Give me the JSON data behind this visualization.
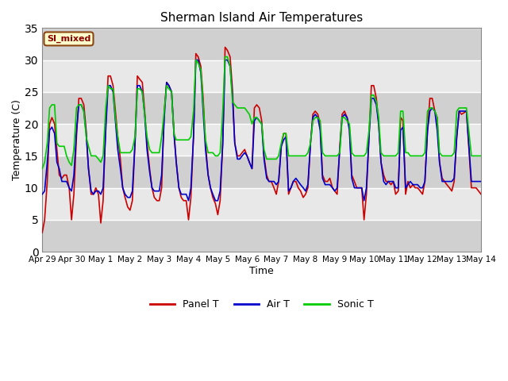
{
  "title": "Sherman Island Air Temperatures",
  "xlabel": "Time",
  "ylabel": "Temperature (C)",
  "ylim": [
    0,
    35
  ],
  "panel_color": "#cc0000",
  "air_color": "#0000cc",
  "sonic_color": "#00cc00",
  "line_width": 1.2,
  "annotation_text": "SI_mixed",
  "annotation_bg": "#ffffcc",
  "annotation_border": "#8b4513",
  "annotation_text_color": "#8b0000",
  "xtick_labels": [
    "Apr 29",
    "Apr 30",
    "May 1",
    "May 2",
    "May 3",
    "May 4",
    "May 5",
    "May 6",
    "May 7",
    "May 8",
    "May 9",
    "May 10",
    "May 11",
    "May 12",
    "May 13",
    "May 14"
  ],
  "ytick_positions": [
    0,
    5,
    10,
    15,
    20,
    25,
    30,
    35
  ],
  "legend_labels": [
    "Panel T",
    "Air T",
    "Sonic T"
  ],
  "band_ranges": [
    [
      10,
      20
    ],
    [
      0,
      10
    ],
    [
      20,
      25
    ],
    [
      25,
      30
    ]
  ],
  "panel_T_x": [
    0.0,
    0.08,
    0.17,
    0.25,
    0.33,
    0.42,
    0.5,
    0.58,
    0.67,
    0.75,
    0.83,
    0.92,
    1.0,
    1.08,
    1.17,
    1.25,
    1.33,
    1.42,
    1.5,
    1.58,
    1.67,
    1.75,
    1.83,
    1.92,
    2.0,
    2.08,
    2.17,
    2.25,
    2.33,
    2.42,
    2.5,
    2.58,
    2.67,
    2.75,
    2.83,
    2.92,
    3.0,
    3.08,
    3.17,
    3.25,
    3.33,
    3.42,
    3.5,
    3.58,
    3.67,
    3.75,
    3.83,
    3.92,
    4.0,
    4.08,
    4.17,
    4.25,
    4.33,
    4.42,
    4.5,
    4.58,
    4.67,
    4.75,
    4.83,
    4.92,
    5.0,
    5.08,
    5.17,
    5.25,
    5.33,
    5.42,
    5.5,
    5.58,
    5.67,
    5.75,
    5.83,
    5.92,
    6.0,
    6.08,
    6.17,
    6.25,
    6.33,
    6.42,
    6.5,
    6.58,
    6.67,
    6.75,
    6.83,
    6.92,
    7.0,
    7.08,
    7.17,
    7.25,
    7.33,
    7.42,
    7.5,
    7.58,
    7.67,
    7.75,
    7.83,
    7.92,
    8.0,
    8.08,
    8.17,
    8.25,
    8.33,
    8.42,
    8.5,
    8.58,
    8.67,
    8.75,
    8.83,
    8.92,
    9.0,
    9.08,
    9.17,
    9.25,
    9.33,
    9.42,
    9.5,
    9.58,
    9.67,
    9.75,
    9.83,
    9.92,
    10.0,
    10.08,
    10.17,
    10.25,
    10.33,
    10.42,
    10.5,
    10.58,
    10.67,
    10.75,
    10.83,
    10.92,
    11.0,
    11.08,
    11.17,
    11.25,
    11.33,
    11.42,
    11.5,
    11.58,
    11.67,
    11.75,
    11.83,
    11.92,
    12.0,
    12.08,
    12.17,
    12.25,
    12.33,
    12.42,
    12.5,
    12.58,
    12.67,
    12.75,
    12.83,
    12.92,
    13.0,
    13.08,
    13.17,
    13.25,
    13.33,
    13.42,
    13.5,
    13.58,
    13.67,
    13.75,
    13.83,
    13.92,
    14.0,
    14.08,
    14.17,
    14.25,
    14.33,
    14.5,
    14.67,
    14.83,
    15.0
  ],
  "panel_T_y": [
    3.0,
    5.0,
    11.0,
    20.0,
    21.0,
    20.0,
    16.0,
    12.0,
    11.5,
    12.0,
    12.0,
    10.0,
    5.0,
    9.0,
    18.0,
    24.0,
    24.0,
    23.0,
    19.0,
    13.0,
    9.0,
    9.0,
    10.0,
    9.0,
    4.5,
    8.0,
    20.0,
    27.5,
    27.5,
    26.0,
    22.0,
    18.0,
    14.5,
    10.0,
    8.5,
    7.0,
    6.5,
    8.0,
    17.0,
    27.5,
    27.0,
    26.5,
    22.0,
    17.0,
    13.0,
    10.0,
    8.5,
    8.0,
    8.0,
    10.0,
    22.0,
    26.5,
    26.0,
    25.0,
    19.0,
    14.0,
    10.0,
    8.5,
    8.0,
    8.0,
    5.0,
    8.5,
    18.0,
    31.0,
    30.5,
    29.0,
    24.0,
    17.0,
    12.0,
    10.0,
    8.5,
    7.5,
    5.8,
    8.0,
    17.0,
    32.0,
    31.5,
    30.5,
    25.5,
    17.0,
    15.0,
    15.0,
    15.5,
    16.0,
    15.0,
    14.0,
    13.0,
    22.5,
    23.0,
    22.5,
    20.5,
    15.0,
    12.0,
    11.0,
    11.0,
    10.0,
    9.0,
    11.0,
    16.5,
    18.5,
    18.5,
    9.0,
    10.0,
    11.0,
    11.0,
    10.0,
    9.5,
    8.5,
    9.0,
    10.0,
    17.0,
    21.5,
    22.0,
    21.5,
    20.0,
    12.0,
    11.0,
    11.0,
    11.5,
    10.0,
    9.5,
    9.0,
    16.5,
    21.5,
    22.0,
    21.0,
    19.5,
    12.0,
    11.0,
    10.0,
    10.0,
    10.0,
    5.0,
    9.0,
    18.0,
    26.0,
    26.0,
    24.0,
    20.0,
    14.0,
    12.0,
    11.0,
    11.0,
    10.5,
    11.0,
    9.0,
    9.5,
    21.0,
    20.5,
    9.0,
    11.0,
    10.0,
    10.5,
    10.0,
    10.0,
    9.5,
    9.0,
    11.0,
    19.0,
    24.0,
    24.0,
    22.0,
    21.0,
    14.0,
    11.5,
    11.0,
    10.5,
    10.0,
    9.5,
    11.0,
    18.0,
    22.0,
    21.5,
    22.0,
    10.0,
    10.0,
    9.0
  ],
  "air_T_x": [
    0.0,
    0.08,
    0.17,
    0.25,
    0.33,
    0.42,
    0.5,
    0.58,
    0.67,
    0.75,
    0.83,
    0.92,
    1.0,
    1.08,
    1.17,
    1.25,
    1.33,
    1.42,
    1.5,
    1.58,
    1.67,
    1.75,
    1.83,
    1.92,
    2.0,
    2.08,
    2.17,
    2.25,
    2.33,
    2.42,
    2.5,
    2.58,
    2.67,
    2.75,
    2.83,
    2.92,
    3.0,
    3.08,
    3.17,
    3.25,
    3.33,
    3.42,
    3.5,
    3.58,
    3.67,
    3.75,
    3.83,
    3.92,
    4.0,
    4.08,
    4.17,
    4.25,
    4.33,
    4.42,
    4.5,
    4.58,
    4.67,
    4.75,
    4.83,
    4.92,
    5.0,
    5.08,
    5.17,
    5.25,
    5.33,
    5.42,
    5.5,
    5.58,
    5.67,
    5.75,
    5.83,
    5.92,
    6.0,
    6.08,
    6.17,
    6.25,
    6.33,
    6.42,
    6.5,
    6.58,
    6.67,
    6.75,
    6.83,
    6.92,
    7.0,
    7.08,
    7.17,
    7.25,
    7.33,
    7.42,
    7.5,
    7.58,
    7.67,
    7.75,
    7.83,
    7.92,
    8.0,
    8.08,
    8.17,
    8.25,
    8.33,
    8.42,
    8.5,
    8.58,
    8.67,
    8.75,
    8.83,
    8.92,
    9.0,
    9.08,
    9.17,
    9.25,
    9.33,
    9.42,
    9.5,
    9.58,
    9.67,
    9.75,
    9.83,
    9.92,
    10.0,
    10.08,
    10.17,
    10.25,
    10.33,
    10.42,
    10.5,
    10.58,
    10.67,
    10.75,
    10.83,
    10.92,
    11.0,
    11.08,
    11.17,
    11.25,
    11.33,
    11.42,
    11.5,
    11.58,
    11.67,
    11.75,
    11.83,
    11.92,
    12.0,
    12.08,
    12.17,
    12.25,
    12.33,
    12.42,
    12.5,
    12.58,
    12.67,
    12.75,
    12.83,
    12.92,
    13.0,
    13.08,
    13.17,
    13.25,
    13.33,
    13.42,
    13.5,
    13.58,
    13.67,
    13.75,
    13.83,
    13.92,
    14.0,
    14.08,
    14.17,
    14.25,
    14.33,
    14.5,
    14.67,
    14.83,
    15.0
  ],
  "air_T_y": [
    9.0,
    9.5,
    14.0,
    19.0,
    19.5,
    18.5,
    14.0,
    13.0,
    11.0,
    11.0,
    11.0,
    10.0,
    9.5,
    12.0,
    19.0,
    23.0,
    23.0,
    22.0,
    18.5,
    13.0,
    9.5,
    9.0,
    9.5,
    9.5,
    9.0,
    10.0,
    19.0,
    26.0,
    26.0,
    25.0,
    20.5,
    16.0,
    13.0,
    10.0,
    9.0,
    8.5,
    8.5,
    9.5,
    17.0,
    26.0,
    26.0,
    25.0,
    21.5,
    16.0,
    12.5,
    10.0,
    9.5,
    9.5,
    9.5,
    12.0,
    21.0,
    26.5,
    26.0,
    25.0,
    18.5,
    14.0,
    10.0,
    9.0,
    9.0,
    9.0,
    8.0,
    10.0,
    18.0,
    30.0,
    30.0,
    28.0,
    22.0,
    16.0,
    12.0,
    10.0,
    9.0,
    8.0,
    8.0,
    9.5,
    17.0,
    30.0,
    30.0,
    29.0,
    24.5,
    17.0,
    14.5,
    14.5,
    15.0,
    15.5,
    15.0,
    14.0,
    13.0,
    20.5,
    21.0,
    20.5,
    20.0,
    14.5,
    11.5,
    11.0,
    11.0,
    11.0,
    10.5,
    11.0,
    16.5,
    17.5,
    18.0,
    9.5,
    10.0,
    11.0,
    11.5,
    11.0,
    10.5,
    10.0,
    9.5,
    10.5,
    17.0,
    21.0,
    21.5,
    21.0,
    19.0,
    11.5,
    10.5,
    10.5,
    10.5,
    10.0,
    9.5,
    10.0,
    16.0,
    21.0,
    21.5,
    21.0,
    19.0,
    11.5,
    10.0,
    10.0,
    10.0,
    10.0,
    8.0,
    10.0,
    18.0,
    24.0,
    24.0,
    23.0,
    20.0,
    14.0,
    11.0,
    10.5,
    11.0,
    11.0,
    11.0,
    10.0,
    10.0,
    19.0,
    19.5,
    10.0,
    10.5,
    11.0,
    10.5,
    10.5,
    10.5,
    10.0,
    10.0,
    11.0,
    19.0,
    22.0,
    22.5,
    22.0,
    19.0,
    14.0,
    11.0,
    11.0,
    11.0,
    11.0,
    11.0,
    11.5,
    18.0,
    22.0,
    22.0,
    22.0,
    11.0,
    11.0,
    11.0
  ],
  "sonic_T_x": [
    0.0,
    0.08,
    0.17,
    0.25,
    0.33,
    0.42,
    0.5,
    0.58,
    0.67,
    0.75,
    0.83,
    0.92,
    1.0,
    1.08,
    1.17,
    1.25,
    1.33,
    1.42,
    1.5,
    1.58,
    1.67,
    1.75,
    1.83,
    1.92,
    2.0,
    2.08,
    2.17,
    2.25,
    2.33,
    2.42,
    2.5,
    2.58,
    2.67,
    2.75,
    2.83,
    2.92,
    3.0,
    3.08,
    3.17,
    3.25,
    3.33,
    3.42,
    3.5,
    3.58,
    3.67,
    3.75,
    3.83,
    3.92,
    4.0,
    4.08,
    4.17,
    4.25,
    4.33,
    4.42,
    4.5,
    4.58,
    4.67,
    4.75,
    4.83,
    4.92,
    5.0,
    5.08,
    5.17,
    5.25,
    5.33,
    5.42,
    5.5,
    5.58,
    5.67,
    5.75,
    5.83,
    5.92,
    6.0,
    6.08,
    6.17,
    6.25,
    6.33,
    6.42,
    6.5,
    6.58,
    6.67,
    6.75,
    6.83,
    6.92,
    7.0,
    7.08,
    7.17,
    7.25,
    7.33,
    7.42,
    7.5,
    7.58,
    7.67,
    7.75,
    7.83,
    7.92,
    8.0,
    8.08,
    8.17,
    8.25,
    8.33,
    8.42,
    8.5,
    8.58,
    8.67,
    8.75,
    8.83,
    8.92,
    9.0,
    9.08,
    9.17,
    9.25,
    9.33,
    9.42,
    9.5,
    9.58,
    9.67,
    9.75,
    9.83,
    9.92,
    10.0,
    10.08,
    10.17,
    10.25,
    10.33,
    10.42,
    10.5,
    10.58,
    10.67,
    10.75,
    10.83,
    10.92,
    11.0,
    11.08,
    11.17,
    11.25,
    11.33,
    11.42,
    11.5,
    11.58,
    11.67,
    11.75,
    11.83,
    11.92,
    12.0,
    12.08,
    12.17,
    12.25,
    12.33,
    12.42,
    12.5,
    12.58,
    12.67,
    12.75,
    12.83,
    12.92,
    13.0,
    13.08,
    13.17,
    13.25,
    13.33,
    13.42,
    13.5,
    13.58,
    13.67,
    13.75,
    13.83,
    13.92,
    14.0,
    14.08,
    14.17,
    14.25,
    14.33,
    14.5,
    14.67,
    14.83,
    15.0
  ],
  "sonic_T_y": [
    13.0,
    14.0,
    17.0,
    22.5,
    23.0,
    23.0,
    17.0,
    16.5,
    16.5,
    16.5,
    15.0,
    14.0,
    13.5,
    16.0,
    22.5,
    23.0,
    23.0,
    22.0,
    18.0,
    16.5,
    15.0,
    15.0,
    15.0,
    14.5,
    14.0,
    15.0,
    22.5,
    26.0,
    25.5,
    25.5,
    21.0,
    18.0,
    15.5,
    15.5,
    15.5,
    15.5,
    15.5,
    16.0,
    18.0,
    25.5,
    25.5,
    25.0,
    21.5,
    18.0,
    16.0,
    15.5,
    15.5,
    15.5,
    15.5,
    18.0,
    22.0,
    26.0,
    25.5,
    25.0,
    18.5,
    17.5,
    17.5,
    17.5,
    17.5,
    17.5,
    17.5,
    18.0,
    22.0,
    30.0,
    29.5,
    28.5,
    23.0,
    17.5,
    15.5,
    15.5,
    15.5,
    15.0,
    15.0,
    15.5,
    22.0,
    30.5,
    30.5,
    29.0,
    23.5,
    23.0,
    22.5,
    22.5,
    22.5,
    22.5,
    22.0,
    21.5,
    20.0,
    21.0,
    21.0,
    20.5,
    20.0,
    16.0,
    14.5,
    14.5,
    14.5,
    14.5,
    14.5,
    15.0,
    17.0,
    18.5,
    18.5,
    15.0,
    15.0,
    15.0,
    15.0,
    15.0,
    15.0,
    15.0,
    15.0,
    15.5,
    17.0,
    20.5,
    21.0,
    21.0,
    20.5,
    15.5,
    15.0,
    15.0,
    15.0,
    15.0,
    15.0,
    15.0,
    15.5,
    21.0,
    21.0,
    20.5,
    20.0,
    15.5,
    15.0,
    15.0,
    15.0,
    15.0,
    15.0,
    15.5,
    19.0,
    24.5,
    24.5,
    23.5,
    21.0,
    15.5,
    15.0,
    15.0,
    15.0,
    15.0,
    15.0,
    15.0,
    15.5,
    22.0,
    22.0,
    15.5,
    15.5,
    15.0,
    15.0,
    15.0,
    15.0,
    15.0,
    15.0,
    15.5,
    22.0,
    22.5,
    22.5,
    22.0,
    21.0,
    15.5,
    15.0,
    15.0,
    15.0,
    15.0,
    15.0,
    15.5,
    22.0,
    22.5,
    22.5,
    22.5,
    15.0,
    15.0,
    15.0
  ]
}
